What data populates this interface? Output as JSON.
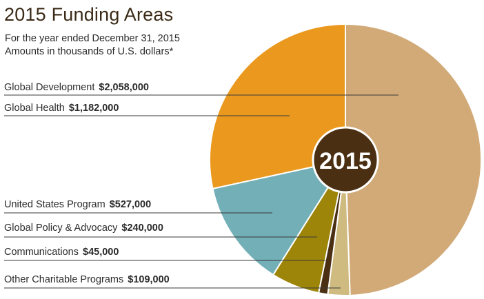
{
  "header": {
    "title": "2015 Funding Areas",
    "subtitle1": "For the year ended December 31, 2015",
    "subtitle2": "Amounts in thousands of U.S. dollars*"
  },
  "chart_data": {
    "type": "pie",
    "center_label": "2015",
    "categories": [
      "Global Development",
      "Global Health",
      "United States Program",
      "Global Policy & Advocacy",
      "Communications",
      "Other Charitable Programs"
    ],
    "series": [
      {
        "values": [
          2058000,
          1182000,
          527000,
          240000,
          45000,
          109000
        ]
      }
    ],
    "labels": [
      {
        "name": "Global Development",
        "amount": "$2,058,000",
        "color": "#d1aa78"
      },
      {
        "name": "Global Health",
        "amount": "$1,182,000",
        "color": "#ea991e"
      },
      {
        "name": "United States Program",
        "amount": "$527,000",
        "color": "#72afb6"
      },
      {
        "name": "Global Policy & Advocacy",
        "amount": "$240,000",
        "color": "#9c8508"
      },
      {
        "name": "Communications",
        "amount": "$45,000",
        "color": "#4a2f12"
      },
      {
        "name": "Other Charitable Programs",
        "amount": "$109,000",
        "color": "#cfbb80"
      }
    ],
    "center_color": "#4a2f12"
  }
}
